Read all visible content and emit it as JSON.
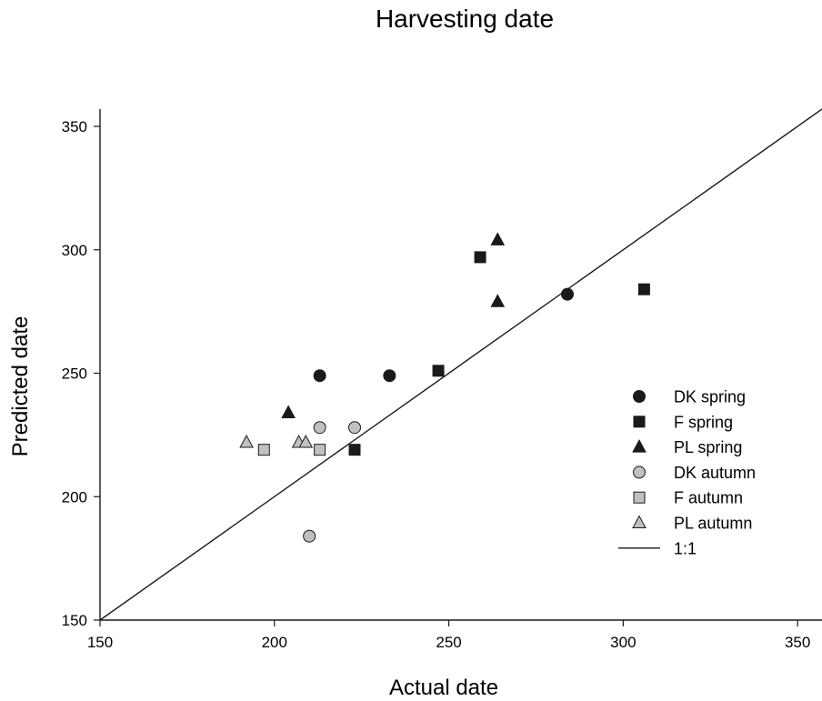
{
  "chart_data": {
    "type": "scatter",
    "title": "Harvesting date",
    "xlabel": "Actual date",
    "ylabel": "Predicted date",
    "xlim": [
      150,
      357
    ],
    "ylim": [
      150,
      357
    ],
    "xticks": [
      "150",
      "200",
      "250",
      "300",
      "350"
    ],
    "yticks": [
      "150",
      "200",
      "250",
      "300",
      "350"
    ],
    "grid": false,
    "legend_position": "right",
    "colors": {
      "spring": "#1a1a1a",
      "autumn": "#c0c0c0",
      "outline": "#1a1a1a",
      "line": "#1a1a1a"
    },
    "series": [
      {
        "name": "DK spring",
        "marker": "circle",
        "group": "spring",
        "x": [
          213,
          233,
          284
        ],
        "y": [
          249,
          249,
          282
        ]
      },
      {
        "name": "F spring",
        "marker": "square",
        "group": "spring",
        "x": [
          223,
          247,
          259,
          306
        ],
        "y": [
          219,
          251,
          297,
          284
        ]
      },
      {
        "name": "PL spring",
        "marker": "triangle",
        "group": "spring",
        "x": [
          204,
          264,
          264
        ],
        "y": [
          234,
          279,
          304
        ]
      },
      {
        "name": "DK autumn",
        "marker": "circle",
        "group": "autumn",
        "x": [
          210,
          213,
          223
        ],
        "y": [
          184,
          228,
          228
        ]
      },
      {
        "name": "F autumn",
        "marker": "square",
        "group": "autumn",
        "x": [
          197,
          213
        ],
        "y": [
          219,
          219
        ]
      },
      {
        "name": "PL autumn",
        "marker": "triangle",
        "group": "autumn",
        "x": [
          192,
          207,
          209
        ],
        "y": [
          222,
          222,
          222
        ]
      }
    ],
    "reference_line": {
      "name": "1:1",
      "slope": 1,
      "intercept": 0
    }
  }
}
